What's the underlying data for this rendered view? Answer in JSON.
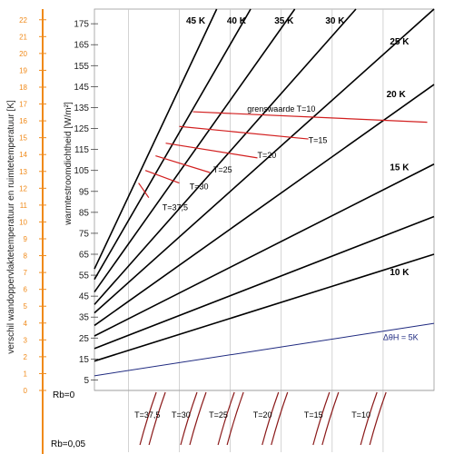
{
  "chart_data": {
    "type": "line",
    "title": "",
    "ylabel_left": "verschil wandoppervlaktetemperatuur en ruimtetemperatuur [K]",
    "ylabel_main": "warmtestroomdichtheid [W/m²]",
    "left_ticks": [
      0,
      1,
      2,
      3,
      4,
      5,
      6,
      7,
      8,
      9,
      10,
      11,
      12,
      13,
      14,
      15,
      16,
      17,
      18,
      19,
      20,
      21,
      22
    ],
    "left_ylim": [
      0,
      22
    ],
    "main_ticks": [
      5,
      15,
      25,
      35,
      45,
      55,
      65,
      75,
      85,
      95,
      105,
      115,
      125,
      135,
      145,
      155,
      165,
      175
    ],
    "ylim": [
      0,
      182
    ],
    "xlim": [
      0,
      1
    ],
    "lines": [
      {
        "label": "ΔθH = 5K",
        "label_pos": [
          0.85,
          24
        ],
        "y0": 7,
        "y1": 32,
        "color": "#1f2a80"
      },
      {
        "label": "10 K",
        "label_pos": [
          0.87,
          55
        ],
        "y0": 14,
        "y1": 65,
        "color": "#000000"
      },
      {
        "label": "",
        "label_pos": null,
        "y0": 20,
        "y1": 83,
        "color": "#000000"
      },
      {
        "label": "15 K",
        "label_pos": [
          0.87,
          105
        ],
        "y0": 26,
        "y1": 108,
        "color": "#000000"
      },
      {
        "label": "20 K",
        "label_pos": [
          0.86,
          140
        ],
        "y0": 31,
        "y1": 146,
        "color": "#000000"
      },
      {
        "label": "25 K",
        "label_pos": [
          0.87,
          165
        ],
        "y0": 37,
        "y1": 182,
        "color": "#000000"
      },
      {
        "label": "30 K",
        "label_pos": [
          0.68,
          175
        ],
        "y0": 41,
        "y1": 182,
        "color": "#000000",
        "x1": 0.77
      },
      {
        "label": "35 K",
        "label_pos": [
          0.53,
          175
        ],
        "y0": 47,
        "y1": 182,
        "color": "#000000",
        "x1": 0.59
      },
      {
        "label": "40 K",
        "label_pos": [
          0.39,
          175
        ],
        "y0": 53,
        "y1": 182,
        "color": "#000000",
        "x1": 0.46
      },
      {
        "label": "45 K",
        "label_pos": [
          0.27,
          175
        ],
        "y0": 58,
        "y1": 182,
        "color": "#000000",
        "x1": 0.36
      }
    ],
    "limit_curves": [
      {
        "label": "grenswaarde T=10",
        "label_pos": [
          0.45,
          133
        ],
        "points": [
          [
            0.29,
            133
          ],
          [
            0.98,
            128
          ]
        ]
      },
      {
        "label": "T=15",
        "label_pos": [
          0.63,
          118
        ],
        "points": [
          [
            0.25,
            126
          ],
          [
            0.63,
            120
          ]
        ]
      },
      {
        "label": "T=20",
        "label_pos": [
          0.48,
          111
        ],
        "points": [
          [
            0.21,
            118
          ],
          [
            0.48,
            111
          ]
        ]
      },
      {
        "label": "T=25",
        "label_pos": [
          0.35,
          104
        ],
        "points": [
          [
            0.18,
            112
          ],
          [
            0.34,
            104
          ]
        ]
      },
      {
        "label": "T=30",
        "label_pos": [
          0.28,
          96
        ],
        "points": [
          [
            0.15,
            105
          ],
          [
            0.25,
            99
          ]
        ]
      },
      {
        "label": "T=37,5",
        "label_pos": [
          0.2,
          86
        ],
        "points": [
          [
            0.13,
            99
          ],
          [
            0.16,
            92
          ]
        ]
      }
    ],
    "bottom_panel": {
      "row_labels": [
        "Rb=0",
        "Rb=0,05"
      ],
      "curve_labels": [
        "T=37,5",
        "T=30",
        "T=25",
        "T=20",
        "T=15",
        "T=10"
      ]
    }
  }
}
